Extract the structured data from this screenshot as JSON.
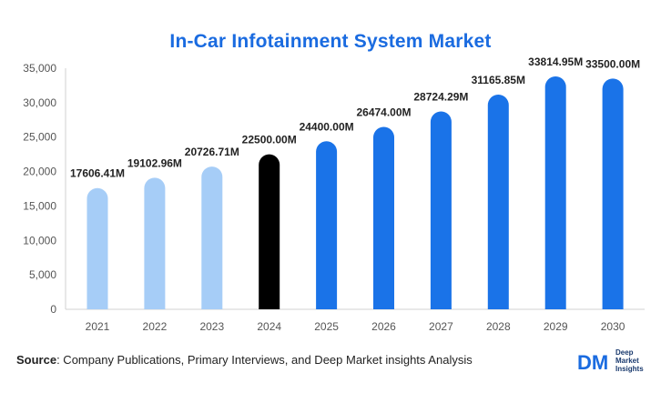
{
  "header": {
    "title": "In-Car Infotainment System Market"
  },
  "chart_data": {
    "type": "bar",
    "title": "In-Car Infotainment System Market",
    "xlabel": "",
    "ylabel": "",
    "categories": [
      "2021",
      "2022",
      "2023",
      "2024",
      "2025",
      "2026",
      "2027",
      "2028",
      "2029",
      "2030"
    ],
    "values": [
      17606.41,
      19102.96,
      20726.71,
      22500.0,
      24400.0,
      26474.0,
      28724.29,
      31165.85,
      33814.95,
      33500.0
    ],
    "data_labels": [
      "17606.41M",
      "19102.96M",
      "20726.71M",
      "22500.00M",
      "24400.00M",
      "26474.00M",
      "28724.29M",
      "31165.85M",
      "33814.95M",
      "33500.00M"
    ],
    "ylim": [
      0,
      35000
    ],
    "yticks": [
      0,
      5000,
      10000,
      15000,
      20000,
      25000,
      30000,
      35000
    ],
    "ytick_labels": [
      "0",
      "5,000",
      "10,000",
      "15,000",
      "20,000",
      "25,000",
      "30,000",
      "35,000"
    ],
    "bar_colors": [
      "#a6cdf7",
      "#a6cdf7",
      "#a6cdf7",
      "#000000",
      "#1a73e8",
      "#1a73e8",
      "#1a73e8",
      "#1a73e8",
      "#1a73e8",
      "#1a73e8"
    ],
    "grid": false,
    "legend": "none"
  },
  "footer": {
    "source_label": "Source",
    "source_text": ": Company Publications, Primary Interviews, and Deep Market insights Analysis"
  },
  "logo": {
    "mark": "DM",
    "line1": "Deep",
    "line2": "Market",
    "line3": "Insights",
    "color": "#1a6be0"
  }
}
